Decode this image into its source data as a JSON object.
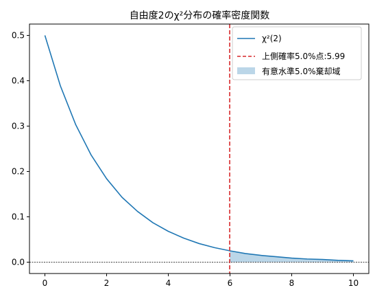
{
  "chart_data": {
    "type": "line",
    "title": "自由度2のχ²分布の確率密度関数",
    "xlabel": "",
    "ylabel": "",
    "xlim": [
      -0.5,
      10.5
    ],
    "ylim": [
      -0.025,
      0.525
    ],
    "x_ticks": [
      0,
      2,
      4,
      6,
      8,
      10
    ],
    "x_tick_labels": [
      "0",
      "2",
      "4",
      "6",
      "8",
      "10"
    ],
    "y_ticks": [
      0.0,
      0.1,
      0.2,
      0.3,
      0.4,
      0.5
    ],
    "y_tick_labels": [
      "0.0",
      "0.1",
      "0.2",
      "0.3",
      "0.4",
      "0.5"
    ],
    "grid": false,
    "legend_position": "upper right",
    "series": [
      {
        "name": "χ²(2)",
        "color": "#1f77b4",
        "x": [
          0,
          0.5,
          1,
          1.5,
          2,
          2.5,
          3,
          3.5,
          4,
          4.5,
          5,
          5.5,
          6,
          6.5,
          7,
          7.5,
          8,
          8.5,
          9,
          9.5,
          10
        ],
        "y": [
          0.5,
          0.389,
          0.303,
          0.236,
          0.184,
          0.143,
          0.112,
          0.087,
          0.068,
          0.053,
          0.041,
          0.032,
          0.025,
          0.019,
          0.015,
          0.012,
          0.009,
          0.007,
          0.006,
          0.004,
          0.003
        ]
      }
    ],
    "critical_line": {
      "label": "上側確率5.0%点:5.99",
      "x": 5.99,
      "color": "#d62728"
    },
    "rejection_region": {
      "label": "有意水準5.0%棄却域",
      "x_from": 5.99,
      "x_to": 10,
      "color": "#1f77b4"
    },
    "baseline": {
      "y": 0,
      "color": "#000000"
    }
  }
}
